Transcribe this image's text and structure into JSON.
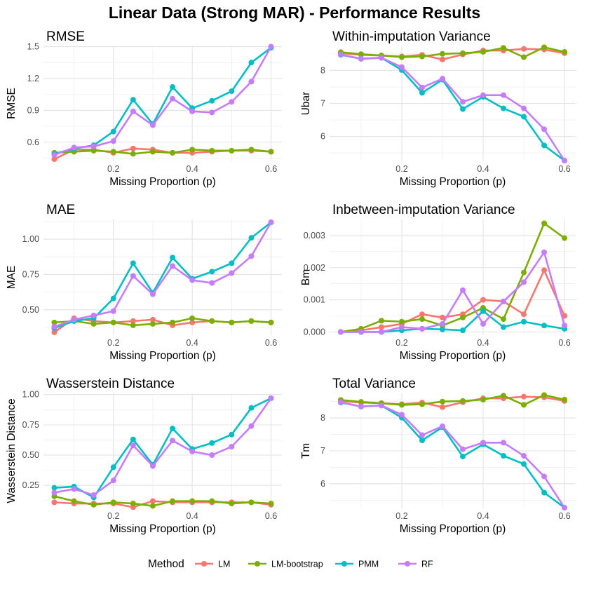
{
  "figure_title": "Linear Data (Strong MAR) - Performance Results",
  "legend": {
    "title": "Method",
    "items": [
      "LM",
      "LM-bootstrap",
      "PMM",
      "RF"
    ]
  },
  "colors": {
    "LM": "#F8766D",
    "LM-bootstrap": "#7CAE00",
    "PMM": "#00BFC4",
    "RF": "#C77CFF"
  },
  "chart_data": [
    {
      "type": "line",
      "title": "RMSE",
      "xlabel": "Missing Proportion (p)",
      "ylabel": "RMSE",
      "xlim": [
        0.05,
        0.6
      ],
      "ylim": [
        0.42,
        1.51
      ],
      "xticks": [
        0.2,
        0.4,
        0.6
      ],
      "yticks": [
        0.6,
        0.9,
        1.2,
        1.5
      ],
      "x": [
        0.05,
        0.1,
        0.15,
        0.2,
        0.25,
        0.3,
        0.35,
        0.4,
        0.45,
        0.5,
        0.55,
        0.6
      ],
      "series": [
        {
          "name": "LM",
          "values": [
            0.44,
            0.53,
            0.53,
            0.5,
            0.54,
            0.53,
            0.5,
            0.5,
            0.51,
            0.52,
            0.52,
            0.51
          ]
        },
        {
          "name": "LM-bootstrap",
          "values": [
            0.5,
            0.51,
            0.52,
            0.51,
            0.49,
            0.51,
            0.5,
            0.53,
            0.52,
            0.52,
            0.53,
            0.51
          ]
        },
        {
          "name": "PMM",
          "values": [
            0.49,
            0.54,
            0.57,
            0.7,
            1.0,
            0.77,
            1.12,
            0.92,
            0.99,
            1.08,
            1.35,
            1.49
          ]
        },
        {
          "name": "RF",
          "values": [
            0.48,
            0.55,
            0.56,
            0.61,
            0.89,
            0.76,
            1.01,
            0.89,
            0.88,
            0.98,
            1.17,
            1.5
          ]
        }
      ]
    },
    {
      "type": "line",
      "title": "Within-imputation Variance",
      "xlabel": "Missing Proportion (p)",
      "ylabel": "Ubar",
      "xlim": [
        0.05,
        0.6
      ],
      "ylim": [
        5.25,
        8.75
      ],
      "xticks": [
        0.2,
        0.4,
        0.6
      ],
      "yticks": [
        6,
        7,
        8
      ],
      "x": [
        0.05,
        0.1,
        0.15,
        0.2,
        0.25,
        0.3,
        0.35,
        0.4,
        0.45,
        0.5,
        0.55,
        0.6
      ],
      "series": [
        {
          "name": "LM",
          "values": [
            8.52,
            8.47,
            8.45,
            8.42,
            8.47,
            8.33,
            8.48,
            8.6,
            8.6,
            8.65,
            8.63,
            8.52
          ]
        },
        {
          "name": "LM-bootstrap",
          "values": [
            8.55,
            8.49,
            8.45,
            8.4,
            8.42,
            8.5,
            8.52,
            8.56,
            8.68,
            8.4,
            8.7,
            8.56
          ]
        },
        {
          "name": "PMM",
          "values": [
            8.47,
            8.35,
            8.38,
            8.01,
            7.32,
            7.72,
            6.83,
            7.2,
            6.85,
            6.6,
            5.73,
            5.27
          ]
        },
        {
          "name": "RF",
          "values": [
            8.48,
            8.35,
            8.38,
            8.1,
            7.48,
            7.75,
            7.05,
            7.25,
            7.25,
            6.85,
            6.22,
            5.27
          ]
        }
      ]
    },
    {
      "type": "line",
      "title": "MAE",
      "xlabel": "Missing Proportion (p)",
      "ylabel": "MAE",
      "xlim": [
        0.05,
        0.6
      ],
      "ylim": [
        0.32,
        1.14
      ],
      "xticks": [
        0.2,
        0.4,
        0.6
      ],
      "yticks": [
        0.5,
        0.75,
        1.0
      ],
      "ytick_labels": [
        "0.50",
        "0.75",
        "1.00"
      ],
      "x": [
        0.05,
        0.1,
        0.15,
        0.2,
        0.25,
        0.3,
        0.35,
        0.4,
        0.45,
        0.5,
        0.55,
        0.6
      ],
      "series": [
        {
          "name": "LM",
          "values": [
            0.34,
            0.44,
            0.42,
            0.41,
            0.42,
            0.43,
            0.39,
            0.41,
            0.42,
            0.41,
            0.42,
            0.41
          ]
        },
        {
          "name": "LM-bootstrap",
          "values": [
            0.41,
            0.42,
            0.4,
            0.41,
            0.39,
            0.4,
            0.41,
            0.44,
            0.42,
            0.41,
            0.42,
            0.41
          ]
        },
        {
          "name": "PMM",
          "values": [
            0.37,
            0.42,
            0.44,
            0.58,
            0.83,
            0.62,
            0.87,
            0.72,
            0.77,
            0.83,
            1.01,
            1.12
          ]
        },
        {
          "name": "RF",
          "values": [
            0.38,
            0.43,
            0.46,
            0.49,
            0.74,
            0.61,
            0.81,
            0.71,
            0.69,
            0.76,
            0.88,
            1.12
          ]
        }
      ]
    },
    {
      "type": "line",
      "title": "Inbetween-imputation Variance",
      "xlabel": "Missing Proportion (p)",
      "ylabel": "Bm",
      "xlim": [
        0.05,
        0.6
      ],
      "ylim": [
        -0.0001,
        0.0035
      ],
      "xticks": [
        0.2,
        0.4,
        0.6
      ],
      "yticks": [
        0.0,
        0.001,
        0.002,
        0.003
      ],
      "ytick_labels": [
        "0.000",
        "0.001",
        "0.002",
        "0.003"
      ],
      "x": [
        0.05,
        0.1,
        0.15,
        0.2,
        0.25,
        0.3,
        0.35,
        0.4,
        0.45,
        0.5,
        0.55,
        0.6
      ],
      "series": [
        {
          "name": "LM",
          "values": [
            0.0,
            5e-05,
            0.00015,
            0.00025,
            0.00055,
            0.00045,
            0.00055,
            0.001,
            0.00095,
            0.00055,
            0.00192,
            0.0005
          ]
        },
        {
          "name": "LM-bootstrap",
          "values": [
            0.0,
            0.0001,
            0.00035,
            0.00032,
            0.0004,
            0.0002,
            0.00045,
            0.00075,
            0.0004,
            0.00185,
            0.00338,
            0.00292
          ]
        },
        {
          "name": "PMM",
          "values": [
            0.0,
            0.0,
            0.0,
            5e-05,
            0.0001,
            8e-05,
            5e-05,
            0.00065,
            0.00015,
            0.00032,
            0.0002,
            0.0001
          ]
        },
        {
          "name": "RF",
          "values": [
            0.0,
            0.0,
            0.0,
            0.00015,
            0.0001,
            0.00025,
            0.0013,
            0.00025,
            0.00095,
            0.00155,
            0.00248,
            0.0002
          ]
        }
      ]
    },
    {
      "type": "line",
      "title": "Wasserstein Distance",
      "xlabel": "Missing Proportion (p)",
      "ylabel": "Wasserstein Distance",
      "xlim": [
        0.05,
        0.6
      ],
      "ylim": [
        0.06,
        1.01
      ],
      "xticks": [
        0.2,
        0.4,
        0.6
      ],
      "yticks": [
        0.25,
        0.5,
        0.75,
        1.0
      ],
      "ytick_labels": [
        "0.25",
        "0.50",
        "0.75",
        "1.00"
      ],
      "x": [
        0.05,
        0.1,
        0.15,
        0.2,
        0.25,
        0.3,
        0.35,
        0.4,
        0.45,
        0.5,
        0.55,
        0.6
      ],
      "series": [
        {
          "name": "LM",
          "values": [
            0.11,
            0.1,
            0.1,
            0.1,
            0.07,
            0.12,
            0.11,
            0.11,
            0.11,
            0.11,
            0.11,
            0.09
          ]
        },
        {
          "name": "LM-bootstrap",
          "values": [
            0.16,
            0.12,
            0.09,
            0.11,
            0.1,
            0.08,
            0.12,
            0.12,
            0.12,
            0.1,
            0.11,
            0.1
          ]
        },
        {
          "name": "PMM",
          "values": [
            0.23,
            0.24,
            0.15,
            0.4,
            0.63,
            0.42,
            0.72,
            0.55,
            0.6,
            0.67,
            0.89,
            0.97
          ]
        },
        {
          "name": "RF",
          "values": [
            0.19,
            0.22,
            0.17,
            0.29,
            0.58,
            0.41,
            0.62,
            0.53,
            0.5,
            0.57,
            0.74,
            0.97
          ]
        }
      ]
    },
    {
      "type": "line",
      "title": "Total Variance",
      "xlabel": "Missing Proportion (p)",
      "ylabel": "Tm",
      "xlim": [
        0.05,
        0.6
      ],
      "ylim": [
        5.25,
        8.75
      ],
      "xticks": [
        0.2,
        0.4,
        0.6
      ],
      "yticks": [
        6,
        7,
        8
      ],
      "x": [
        0.05,
        0.1,
        0.15,
        0.2,
        0.25,
        0.3,
        0.35,
        0.4,
        0.45,
        0.5,
        0.55,
        0.6
      ],
      "series": [
        {
          "name": "LM",
          "values": [
            8.52,
            8.47,
            8.45,
            8.42,
            8.47,
            8.33,
            8.48,
            8.6,
            8.6,
            8.65,
            8.63,
            8.52
          ]
        },
        {
          "name": "LM-bootstrap",
          "values": [
            8.55,
            8.49,
            8.45,
            8.4,
            8.42,
            8.5,
            8.52,
            8.56,
            8.68,
            8.4,
            8.7,
            8.56
          ]
        },
        {
          "name": "PMM",
          "values": [
            8.47,
            8.35,
            8.38,
            8.01,
            7.32,
            7.72,
            6.83,
            7.2,
            6.85,
            6.6,
            5.73,
            5.27
          ]
        },
        {
          "name": "RF",
          "values": [
            8.48,
            8.35,
            8.38,
            8.1,
            7.48,
            7.75,
            7.05,
            7.25,
            7.25,
            6.85,
            6.22,
            5.27
          ]
        }
      ]
    }
  ]
}
